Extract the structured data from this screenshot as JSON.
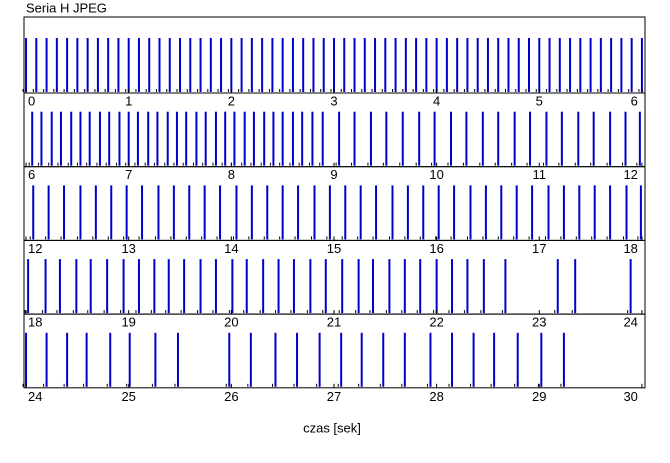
{
  "chart_data": {
    "type": "spike",
    "title": "Seria H JPEG",
    "x_label": "czas [sek]",
    "color": "#0000cc",
    "panels": [
      {
        "xlim": [
          -0.02,
          6.03
        ],
        "xticks": [
          0,
          1,
          2,
          3,
          4,
          5,
          6
        ],
        "events": [
          0,
          0.1,
          0.2,
          0.3,
          0.4,
          0.5,
          0.6,
          0.7,
          0.8,
          0.9,
          1.0,
          1.1,
          1.2,
          1.3,
          1.4,
          1.5,
          1.6,
          1.7,
          1.8,
          1.9,
          2.0,
          2.1,
          2.2,
          2.3,
          2.4,
          2.5,
          2.6,
          2.7,
          2.8,
          2.9,
          3.0,
          3.1,
          3.2,
          3.3,
          3.4,
          3.5,
          3.6,
          3.7,
          3.8,
          3.9,
          4.0,
          4.1,
          4.2,
          4.3,
          4.4,
          4.5,
          4.6,
          4.7,
          4.8,
          4.9,
          5.0,
          5.1,
          5.2,
          5.3,
          5.4,
          5.5,
          5.6,
          5.7,
          5.8,
          5.9,
          6.0
        ]
      },
      {
        "xlim": [
          5.98,
          12.03
        ],
        "xticks": [
          6,
          7,
          8,
          9,
          10,
          11,
          12
        ],
        "events": [
          6.06,
          6.15,
          6.25,
          6.34,
          6.44,
          6.53,
          6.62,
          6.72,
          6.81,
          6.91,
          7.0,
          7.09,
          7.19,
          7.28,
          7.38,
          7.47,
          7.56,
          7.66,
          7.75,
          7.85,
          7.94,
          8.03,
          8.13,
          8.22,
          8.32,
          8.41,
          8.5,
          8.6,
          8.69,
          8.79,
          8.89,
          9.05,
          9.2,
          9.36,
          9.51,
          9.67,
          9.83,
          9.98,
          10.14,
          10.29,
          10.45,
          10.6,
          10.76,
          10.91,
          11.07,
          11.22,
          11.38,
          11.53,
          11.69,
          11.84,
          11.98
        ]
      },
      {
        "xlim": [
          11.98,
          18.03
        ],
        "xticks": [
          12,
          13,
          14,
          15,
          16,
          17,
          18
        ],
        "events": [
          12.07,
          12.22,
          12.37,
          12.53,
          12.68,
          12.83,
          12.98,
          13.13,
          13.29,
          13.44,
          13.59,
          13.74,
          13.89,
          14.05,
          14.2,
          14.35,
          14.5,
          14.65,
          14.81,
          14.96,
          15.11,
          15.26,
          15.41,
          15.57,
          15.72,
          15.87,
          16.02,
          16.17,
          16.33,
          16.48,
          16.63,
          16.78,
          16.93,
          17.09,
          17.24,
          17.39,
          17.54,
          17.69,
          17.85,
          17.99
        ]
      },
      {
        "xlim": [
          17.98,
          24.03
        ],
        "xticks": [
          18,
          19,
          20,
          21,
          22,
          23,
          24
        ],
        "events": [
          18.02,
          18.19,
          18.33,
          18.49,
          18.63,
          18.79,
          18.95,
          19.1,
          19.25,
          19.39,
          19.54,
          19.7,
          19.85,
          20.01,
          20.15,
          20.31,
          20.46,
          20.61,
          20.77,
          20.92,
          21.08,
          21.24,
          21.38,
          21.54,
          21.69,
          21.84,
          22.0,
          22.15,
          22.3,
          22.46,
          22.67,
          23.18,
          23.35,
          23.89
        ]
      },
      {
        "xlim": [
          23.98,
          30.03
        ],
        "xticks": [
          24,
          25,
          26,
          27,
          28,
          29,
          30
        ],
        "events": [
          24.0,
          24.2,
          24.4,
          24.59,
          24.82,
          25.01,
          25.26,
          25.48,
          25.98,
          26.19,
          26.43,
          26.64,
          26.86,
          27.07,
          27.27,
          27.48,
          27.69,
          27.94,
          28.15,
          28.36,
          28.56,
          28.79,
          29.02,
          29.24
        ]
      }
    ]
  }
}
